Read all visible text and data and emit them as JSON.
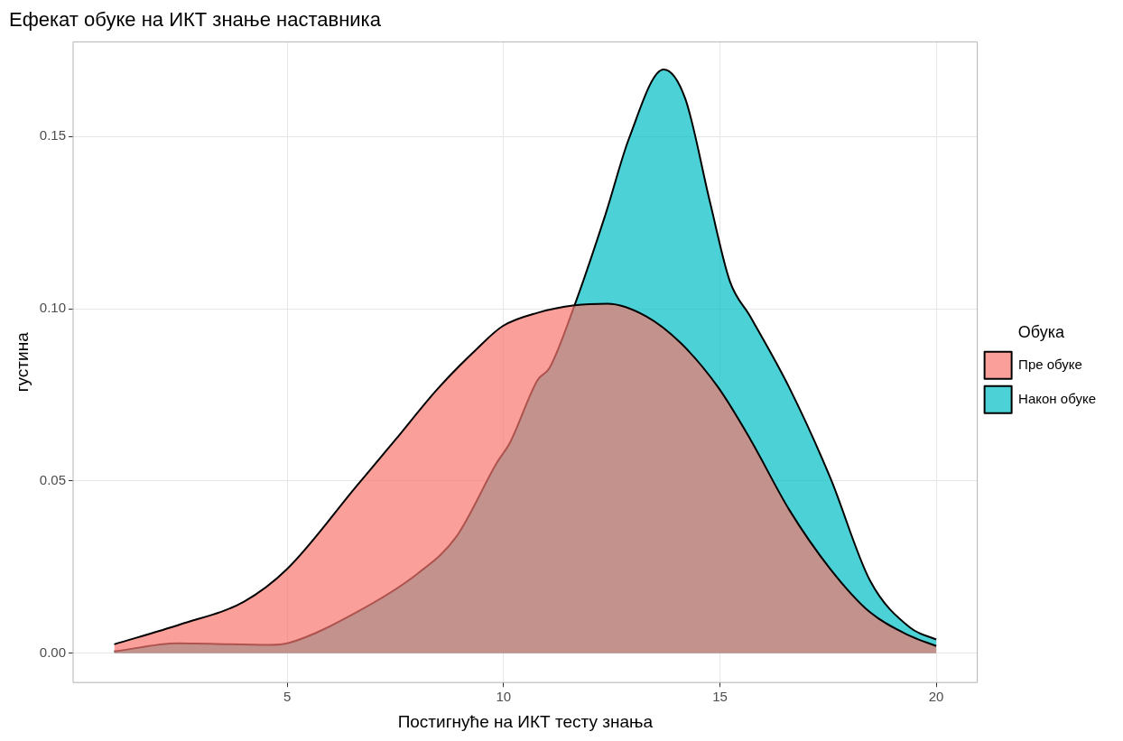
{
  "chart_data": {
    "type": "area",
    "title": "Ефекат обуке на ИКТ знање наставника",
    "xlabel": "Постигнуће на ИКТ тесту знања",
    "ylabel": "густина",
    "legend_title": "Обука",
    "legend": "right",
    "grid": true,
    "line_style": "solid",
    "xlim": [
      0.05,
      20.95
    ],
    "xticks": [
      5,
      10,
      15,
      20
    ],
    "ylim": [
      -0.0085,
      0.1775
    ],
    "yticks": [
      {
        "value": 0,
        "label": "0.00"
      },
      {
        "value": 0.05,
        "label": "0.05"
      },
      {
        "value": 0.1,
        "label": "0.10"
      },
      {
        "value": 0.15,
        "label": "0.15"
      }
    ],
    "series": [
      {
        "name": "Пре обуке",
        "color": "#f8766d",
        "x": [
          1,
          2.53,
          4,
          5,
          6.6,
          7.5,
          8.47,
          9.4,
          9.98,
          10.8,
          11.64,
          12.4,
          13.3,
          14.1,
          14.96,
          15.7,
          16.6,
          17.55,
          18.47,
          19.4,
          20
        ],
        "values": [
          0.0026,
          0.0084,
          0.015,
          0.0245,
          0.0485,
          0.062,
          0.0767,
          0.0886,
          0.095,
          0.0989,
          0.101,
          0.1015,
          0.0978,
          0.09,
          0.0772,
          0.0622,
          0.0417,
          0.0245,
          0.0119,
          0.005,
          0.0021
        ]
      },
      {
        "name": "Након обуке",
        "color": "#00bfc4",
        "x": [
          1,
          2.47,
          4.6,
          5.04,
          6.6,
          8,
          8.9,
          9.85,
          10.15,
          10.79,
          11.06,
          11.64,
          12.36,
          12.9,
          13.7,
          14.2,
          14.77,
          15.23,
          15.7,
          16.6,
          17.55,
          18.47,
          19.4,
          20
        ],
        "values": [
          0.0005,
          0.0029,
          0.0024,
          0.003,
          0.0119,
          0.023,
          0.0337,
          0.0554,
          0.0612,
          0.0794,
          0.0828,
          0.101,
          0.1276,
          0.1495,
          0.1695,
          0.161,
          0.131,
          0.108,
          0.0978,
          0.0772,
          0.051,
          0.0211,
          0.0074,
          0.004
        ]
      }
    ]
  }
}
